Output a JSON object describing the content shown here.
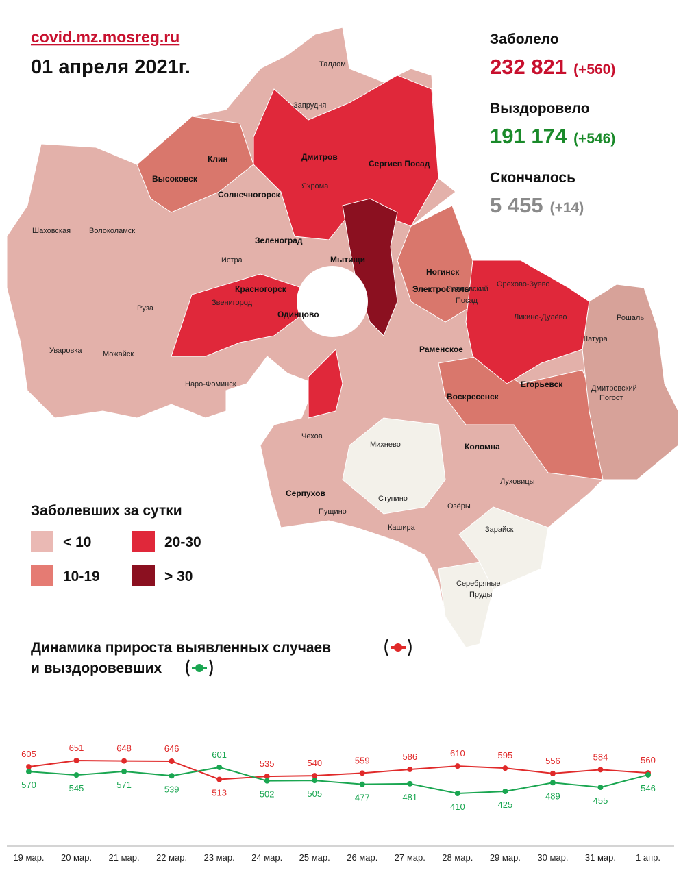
{
  "header": {
    "site": "covid.mz.mosreg.ru",
    "date": "01 апреля 2021г."
  },
  "stats": [
    {
      "label": "Заболело",
      "value": "232 821",
      "delta": "(+560)",
      "color": "#c8102e"
    },
    {
      "label": "Выздоровело",
      "value": "191 174",
      "delta": "(+546)",
      "color": "#1a8a2a"
    },
    {
      "label": "Скончалось",
      "value": "5 455",
      "delta": "(+14)",
      "color": "#8a8a8a"
    }
  ],
  "legend": {
    "title": "Заболевших за сутки",
    "items": [
      {
        "label": "< 10",
        "color": "#eab9b4"
      },
      {
        "label": "20-30",
        "color": "#e0283a"
      },
      {
        "label": "10-19",
        "color": "#e57b73"
      },
      {
        "label": "> 30",
        "color": "#8b1020"
      }
    ]
  },
  "map": {
    "labels": [
      "Талдом",
      "Запрудня",
      "Клин",
      "Высоковск",
      "Солнечногорск",
      "Дмитров",
      "Яхрома",
      "Сергиев Посад",
      "Шаховская",
      "Волоколамск",
      "Зеленоград",
      "Истра",
      "Мытищи",
      "Красногорск",
      "Звенигород",
      "Одинцово",
      "Руза",
      "Уваровка",
      "Можайск",
      "Наро-Фоминск",
      "Ногинск",
      "Электросталь",
      "Павловский",
      "Посад",
      "Орехово-Зуево",
      "Ликино-Дулёво",
      "Рошаль",
      "Шатура",
      "Раменское",
      "Воскресенск",
      "Егорьевск",
      "Дмитровский",
      "Погост",
      "Чехов",
      "Михнево",
      "Коломна",
      "Серпухов",
      "Пущино",
      "Ступино",
      "Озёры",
      "Луховицы",
      "Кашира",
      "Зарайск",
      "Серебряные",
      "Пруды"
    ]
  },
  "chart_data": {
    "type": "line",
    "title": "Динамика прироста выявленных случаев",
    "title_line2": "и выздоровевших",
    "categories": [
      "19 мар.",
      "20 мар.",
      "21 мар.",
      "22 мар.",
      "23 мар.",
      "24 мар.",
      "25 мар.",
      "26 мар.",
      "27 мар.",
      "28 мар.",
      "29 мар.",
      "30 мар.",
      "31 мар.",
      "1 апр."
    ],
    "series": [
      {
        "color": "#e02a2a",
        "values": [
          605,
          651,
          648,
          646,
          513,
          535,
          540,
          559,
          586,
          610,
          595,
          556,
          584,
          560
        ]
      },
      {
        "color": "#1aa651",
        "values": [
          570,
          545,
          571,
          539,
          601,
          502,
          505,
          477,
          481,
          410,
          425,
          489,
          455,
          546
        ]
      }
    ]
  }
}
